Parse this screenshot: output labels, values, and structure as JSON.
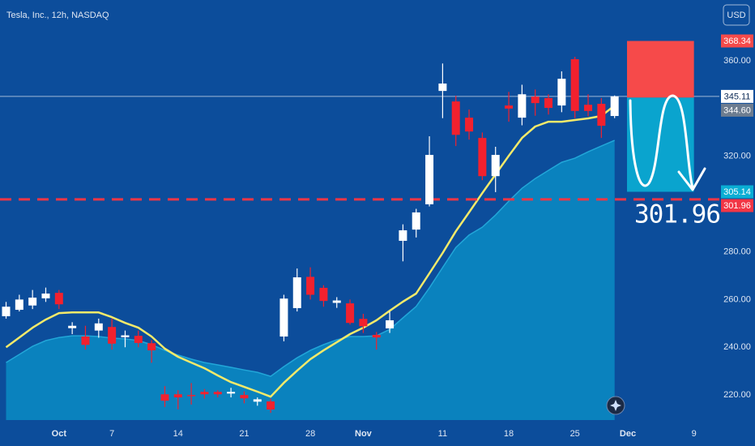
{
  "chart_data": {
    "type": "candlestick",
    "title": "Tesla, Inc., 12h, NASDAQ",
    "currency": "USD",
    "annotation": "301.96",
    "categories": [
      null,
      null,
      null,
      null,
      "Oct",
      null,
      null,
      null,
      "7",
      null,
      null,
      null,
      null,
      "14",
      null,
      null,
      null,
      null,
      "21",
      null,
      null,
      null,
      null,
      "28",
      null,
      null,
      null,
      "Nov",
      null,
      null,
      null,
      null,
      null,
      "11",
      null,
      null,
      null,
      null,
      "18",
      null,
      null,
      null,
      null,
      "25",
      null,
      null,
      null,
      "Dec",
      null,
      null,
      null,
      null,
      "9"
    ],
    "open": [
      253,
      255.7,
      257.5,
      260.5,
      262.8,
      248,
      244.5,
      247,
      248.5,
      244.2,
      244.8,
      241.7,
      220.3,
      220.3,
      220,
      221.3,
      221.3,
      220.6,
      220,
      217.2,
      217.3,
      244.5,
      256.4,
      269.5,
      264.9,
      258.6,
      258.4,
      251.9,
      245.2,
      247.9,
      284.6,
      289.3,
      299.9,
      347.4,
      343,
      336.2,
      327.7,
      311.7,
      341.3,
      336.2,
      345,
      344.4,
      341.3,
      360.7,
      341.6,
      342,
      336.9,
      null,
      null,
      null,
      null,
      null,
      null
    ],
    "high": [
      259,
      262,
      264,
      265,
      264,
      250.5,
      249,
      252,
      252,
      247,
      247,
      243,
      223.7,
      222,
      225,
      222.5,
      222,
      223,
      221.5,
      219,
      218.5,
      262,
      273,
      273.5,
      266,
      261,
      260,
      254,
      246.4,
      255,
      291.5,
      298,
      328.4,
      358.9,
      345.4,
      339.6,
      330,
      324,
      347,
      350,
      348,
      346,
      355.6,
      361.7,
      346,
      344.4,
      345.5,
      null,
      null,
      null,
      null,
      null,
      null
    ],
    "low": [
      252,
      255,
      256,
      259,
      256,
      245.5,
      239,
      244,
      239,
      240,
      240,
      233.5,
      215,
      214,
      216,
      218.5,
      219,
      219,
      216.5,
      215.5,
      212.5,
      242.5,
      255,
      260,
      257,
      256.5,
      249.5,
      246,
      239,
      246,
      276,
      286,
      299,
      336,
      324.3,
      327,
      310,
      305,
      334.5,
      333,
      337,
      337.5,
      338.5,
      336,
      336.8,
      327.7,
      336,
      null,
      null,
      null,
      null,
      null,
      null
    ],
    "close": [
      257,
      260,
      260.8,
      262.5,
      258,
      249,
      241,
      250,
      241.5,
      245,
      241.8,
      238.7,
      217.6,
      219,
      219.5,
      220.3,
      220.3,
      221.3,
      218.6,
      218.2,
      213.9,
      260.4,
      269.3,
      262,
      259.4,
      259.6,
      250.2,
      248.8,
      244.1,
      251.3,
      289,
      296.5,
      320.6,
      350.5,
      329,
      330.4,
      311.7,
      320.6,
      340,
      346,
      342.3,
      340.3,
      352.5,
      339,
      339,
      332.8,
      345.11,
      null,
      null,
      null,
      null,
      null,
      null
    ],
    "up_color": "#ffffff",
    "down_color": "#f2212e",
    "last_price_color": "#9fb8d6",
    "overlays": [
      {
        "kind": "area",
        "color": "#22a6d8",
        "fill": "#0b8cc4",
        "values": [
          233.6,
          237,
          240.4,
          242.8,
          244.1,
          244.8,
          244.8,
          244.5,
          243.8,
          243.5,
          242.8,
          241.1,
          238.7,
          236.7,
          235,
          233.6,
          232.6,
          231.6,
          230.5,
          229.5,
          227.8,
          231.9,
          235.6,
          238.7,
          241.1,
          243.1,
          244.5,
          244.5,
          244.8,
          247.5,
          252.3,
          257.1,
          264.9,
          273.4,
          281.8,
          287,
          290.3,
          295.4,
          301.2,
          306.6,
          310.7,
          314.1,
          317.5,
          319.2,
          321.9,
          324.3,
          326.7,
          null,
          null,
          null,
          null,
          null,
          null
        ]
      },
      {
        "kind": "line",
        "color": "#f4ea6a",
        "values": [
          240,
          244.1,
          248.2,
          251.6,
          254.3,
          254.6,
          254.6,
          254.6,
          252.6,
          250.2,
          248.2,
          244.5,
          239.4,
          236,
          233.6,
          231.2,
          228.2,
          225.4,
          223.4,
          221.4,
          219.3,
          225.1,
          230.2,
          235,
          238.7,
          242.1,
          245.5,
          248.2,
          251.3,
          255.3,
          259.1,
          262.5,
          271,
          279.5,
          288.6,
          296.5,
          304.6,
          312.4,
          320.2,
          327.7,
          332.5,
          334.5,
          334.5,
          335.2,
          335.9,
          336.9,
          341.3,
          null,
          null,
          null,
          null,
          null,
          null
        ]
      }
    ],
    "position": {
      "stop": 368.34,
      "entry": {
        "value": 344.6,
        "label": "344.60"
      },
      "target": 305.14,
      "stop_color": "#f64a4a",
      "entry_color": "#6d7d90",
      "target_color": "#0aaed4"
    },
    "alert": {
      "value": 301.96,
      "color": "#f23645"
    },
    "ylim": [
      209.5,
      385.5
    ],
    "yticks": [
      {
        "value": 220,
        "label": "220.00"
      },
      {
        "value": 240,
        "label": "240.00"
      },
      {
        "value": 260,
        "label": "260.00"
      },
      {
        "value": 280,
        "label": "280.00"
      },
      {
        "value": 320,
        "label": "320.00"
      },
      {
        "value": 360,
        "label": "360.00"
      }
    ],
    "grid": false
  }
}
